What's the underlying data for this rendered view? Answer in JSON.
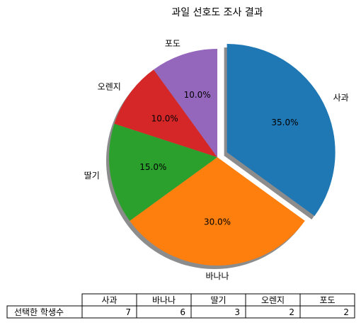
{
  "chart_data": {
    "type": "pie",
    "title": "과일 선호도 조사 결과",
    "categories": [
      "사과",
      "바나나",
      "딸기",
      "오렌지",
      "포도"
    ],
    "values": [
      35,
      30,
      15,
      10,
      10
    ],
    "value_labels": [
      "35.0%",
      "30.0%",
      "15.0%",
      "10.0%",
      "10.0%"
    ],
    "colors": [
      "#1f77b4",
      "#ff7f0e",
      "#2ca02c",
      "#d62728",
      "#9467bd"
    ],
    "explode": [
      0.1,
      0,
      0,
      0,
      0
    ],
    "shadow": true,
    "startangle": 90,
    "counterclock": false,
    "table_row_label": "선택한 학생수",
    "table_values": [
      7,
      6,
      3,
      2,
      2
    ]
  }
}
